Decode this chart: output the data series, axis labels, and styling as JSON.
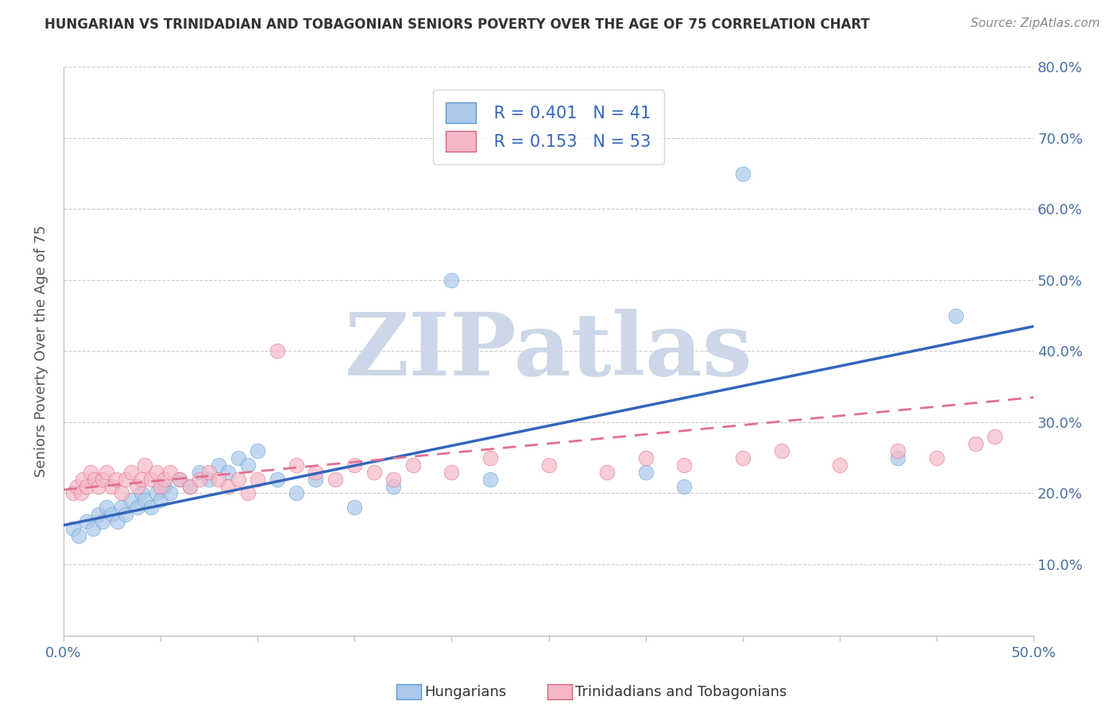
{
  "title": "HUNGARIAN VS TRINIDADIAN AND TOBAGONIAN SENIORS POVERTY OVER THE AGE OF 75 CORRELATION CHART",
  "source_text": "Source: ZipAtlas.com",
  "ylabel": "Seniors Poverty Over the Age of 75",
  "xlim": [
    0.0,
    0.5
  ],
  "ylim": [
    0.0,
    0.8
  ],
  "xticks": [
    0.0,
    0.05,
    0.1,
    0.15,
    0.2,
    0.25,
    0.3,
    0.35,
    0.4,
    0.45,
    0.5
  ],
  "yticks": [
    0.0,
    0.1,
    0.2,
    0.3,
    0.4,
    0.5,
    0.6,
    0.7,
    0.8
  ],
  "xtick_labels": [
    "0.0%",
    "",
    "",
    "",
    "",
    "",
    "",
    "",
    "",
    "",
    "50.0%"
  ],
  "right_ytick_labels": [
    "",
    "10.0%",
    "20.0%",
    "30.0%",
    "40.0%",
    "50.0%",
    "60.0%",
    "70.0%",
    "80.0%"
  ],
  "blue_fill_color": "#aac8ea",
  "pink_fill_color": "#f5b8c8",
  "blue_edge_color": "#5599cc",
  "pink_edge_color": "#e06080",
  "blue_line_color": "#3366bb",
  "pink_line_color": "#e07090",
  "watermark": "ZIPatlas",
  "watermark_color": "#ccd8e8",
  "R_blue": 0.401,
  "N_blue": 41,
  "R_pink": 0.153,
  "N_pink": 53,
  "blue_scatter_x": [
    0.005,
    0.008,
    0.012,
    0.015,
    0.018,
    0.02,
    0.022,
    0.025,
    0.028,
    0.03,
    0.032,
    0.035,
    0.038,
    0.04,
    0.042,
    0.045,
    0.048,
    0.05,
    0.052,
    0.055,
    0.06,
    0.065,
    0.07,
    0.075,
    0.08,
    0.085,
    0.09,
    0.095,
    0.1,
    0.11,
    0.12,
    0.13,
    0.15,
    0.17,
    0.2,
    0.22,
    0.3,
    0.32,
    0.35,
    0.43,
    0.46
  ],
  "blue_scatter_y": [
    0.15,
    0.14,
    0.16,
    0.15,
    0.17,
    0.16,
    0.18,
    0.17,
    0.16,
    0.18,
    0.17,
    0.19,
    0.18,
    0.2,
    0.19,
    0.18,
    0.2,
    0.19,
    0.21,
    0.2,
    0.22,
    0.21,
    0.23,
    0.22,
    0.24,
    0.23,
    0.25,
    0.24,
    0.26,
    0.22,
    0.2,
    0.22,
    0.18,
    0.21,
    0.5,
    0.22,
    0.23,
    0.21,
    0.65,
    0.25,
    0.45
  ],
  "pink_scatter_x": [
    0.005,
    0.007,
    0.009,
    0.01,
    0.012,
    0.014,
    0.016,
    0.018,
    0.02,
    0.022,
    0.025,
    0.027,
    0.03,
    0.032,
    0.035,
    0.038,
    0.04,
    0.042,
    0.045,
    0.048,
    0.05,
    0.052,
    0.055,
    0.06,
    0.065,
    0.07,
    0.075,
    0.08,
    0.085,
    0.09,
    0.095,
    0.1,
    0.11,
    0.12,
    0.13,
    0.14,
    0.15,
    0.16,
    0.17,
    0.18,
    0.2,
    0.22,
    0.25,
    0.28,
    0.3,
    0.32,
    0.35,
    0.37,
    0.4,
    0.43,
    0.45,
    0.47,
    0.48
  ],
  "pink_scatter_y": [
    0.2,
    0.21,
    0.2,
    0.22,
    0.21,
    0.23,
    0.22,
    0.21,
    0.22,
    0.23,
    0.21,
    0.22,
    0.2,
    0.22,
    0.23,
    0.21,
    0.22,
    0.24,
    0.22,
    0.23,
    0.21,
    0.22,
    0.23,
    0.22,
    0.21,
    0.22,
    0.23,
    0.22,
    0.21,
    0.22,
    0.2,
    0.22,
    0.4,
    0.24,
    0.23,
    0.22,
    0.24,
    0.23,
    0.22,
    0.24,
    0.23,
    0.25,
    0.24,
    0.23,
    0.25,
    0.24,
    0.25,
    0.26,
    0.24,
    0.26,
    0.25,
    0.27,
    0.28
  ],
  "blue_trend_x0": 0.0,
  "blue_trend_y0": 0.155,
  "blue_trend_x1": 0.5,
  "blue_trend_y1": 0.435,
  "pink_trend_x0": 0.0,
  "pink_trend_y0": 0.205,
  "pink_trend_x1": 0.5,
  "pink_trend_y1": 0.335
}
